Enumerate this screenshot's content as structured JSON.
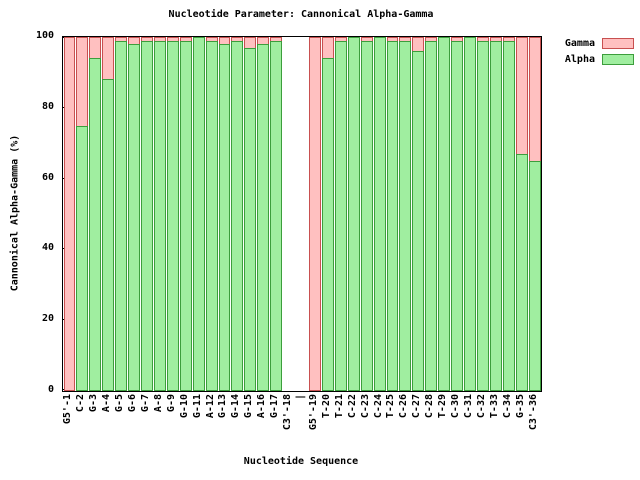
{
  "chart_data": {
    "type": "bar",
    "title": "Nucleotide Parameter: Cannonical Alpha-Gamma",
    "xlabel": "Nucleotide Sequence",
    "ylabel": "Cannonical Alpha-Gamma (%)",
    "ylim": [
      0,
      100
    ],
    "yticks": [
      0,
      20,
      40,
      60,
      80,
      100
    ],
    "grid": false,
    "legend_position": "top-right-outside",
    "bar_style": "overlaid",
    "categories": [
      "G5'-1",
      "C-2",
      "G-3",
      "A-4",
      "G-5",
      "G-6",
      "G-7",
      "A-8",
      "G-9",
      "G-10",
      "G-11",
      "A-12",
      "G-13",
      "G-14",
      "G-15",
      "A-16",
      "G-17",
      "C3'-18",
      "|",
      "G5'-19",
      "T-20",
      "T-21",
      "C-22",
      "C-23",
      "C-24",
      "T-25",
      "C-26",
      "C-27",
      "C-28",
      "T-29",
      "C-30",
      "C-31",
      "C-32",
      "T-33",
      "C-34",
      "G-35",
      "C3'-36"
    ],
    "series": [
      {
        "name": "Gamma",
        "fill": "#ffc0c0",
        "border": "#c85050",
        "values": [
          100,
          100,
          100,
          100,
          100,
          100,
          100,
          100,
          100,
          100,
          100,
          100,
          100,
          100,
          100,
          100,
          100,
          0,
          0,
          100,
          100,
          100,
          100,
          100,
          100,
          100,
          100,
          100,
          100,
          100,
          100,
          100,
          100,
          100,
          100,
          100,
          100
        ]
      },
      {
        "name": "Alpha",
        "fill": "#a0eea0",
        "border": "#3c9e3c",
        "values": [
          0,
          75,
          94,
          88,
          99,
          98,
          99,
          99,
          99,
          99,
          100,
          99,
          98,
          99,
          97,
          98,
          99,
          0,
          0,
          0,
          94,
          99,
          100,
          99,
          100,
          99,
          99,
          96,
          99,
          100,
          99,
          100,
          99,
          99,
          99,
          67,
          65
        ]
      }
    ]
  }
}
